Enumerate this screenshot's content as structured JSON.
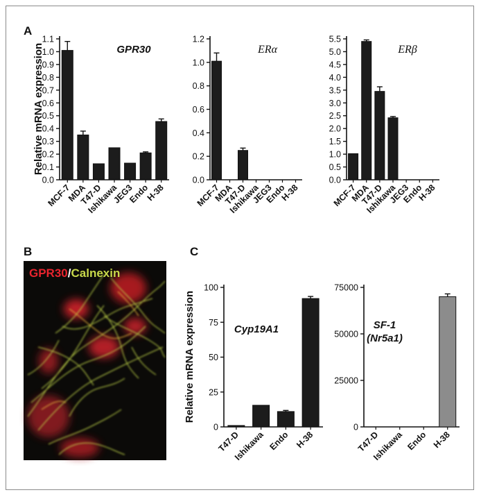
{
  "panels": {
    "a": "A",
    "b": "B",
    "c": "C"
  },
  "micrograph": {
    "label_red": "GPR30",
    "label_sep": "/",
    "label_green": "Calnexin",
    "colors": {
      "red": "#e8242e",
      "green": "#c8d84a",
      "background": "#0a0a08"
    }
  },
  "colors": {
    "bar": "#1c1c1c",
    "bar_grey": "#8c8c8c",
    "axis": "#111111"
  },
  "chart_data": [
    {
      "id": "gpr30",
      "type": "bar",
      "panel": "A",
      "title": "GPR30",
      "ylabel": "Relative mRNA expression",
      "ylim": [
        0,
        1.1
      ],
      "yticks": [
        "0.0",
        "0.1",
        "0.2",
        "0.3",
        "0.4",
        "0.5",
        "0.6",
        "0.7",
        "0.8",
        "0.9",
        "1.0",
        "1.1"
      ],
      "categories": [
        "MCF-7",
        "MDA",
        "T47-D",
        "Ishikawa",
        "JEG3",
        "Endo",
        "H-38"
      ],
      "values": [
        1.01,
        0.35,
        0.125,
        0.25,
        0.13,
        0.21,
        0.455
      ],
      "errors": [
        0.07,
        0.03,
        0.0,
        0.0,
        0.0,
        0.008,
        0.02
      ]
    },
    {
      "id": "era",
      "type": "bar",
      "panel": "A",
      "title_main": "ER",
      "title_greek": "α",
      "ylim": [
        0,
        1.2
      ],
      "yticks": [
        "0.0",
        "0.2",
        "0.4",
        "0.6",
        "0.8",
        "1.0",
        "1.2"
      ],
      "categories": [
        "MCF-7",
        "MDA",
        "T47-D",
        "Ishikawa",
        "JEG3",
        "Endo",
        "H-38"
      ],
      "values": [
        1.01,
        0.0,
        0.25,
        0.0,
        0.0,
        0.0,
        0.0
      ],
      "errors": [
        0.07,
        0.0,
        0.02,
        0.0,
        0.0,
        0.0,
        0.0
      ]
    },
    {
      "id": "erb",
      "type": "bar",
      "panel": "A",
      "title_main": "ER",
      "title_greek": "β",
      "ylim": [
        0,
        5.5
      ],
      "yticks": [
        "0.0",
        "0.5",
        "1.0",
        "1.5",
        "2.0",
        "2.5",
        "3.0",
        "3.5",
        "4.0",
        "4.5",
        "5.0",
        "5.5"
      ],
      "categories": [
        "MCF-7",
        "MDA",
        "T47-D",
        "Ishikawa",
        "JEG3",
        "Endo",
        "H-38"
      ],
      "values": [
        1.02,
        5.4,
        3.45,
        2.42,
        0.0,
        0.0,
        0.0
      ],
      "errors": [
        0.0,
        0.06,
        0.18,
        0.05,
        0.0,
        0.0,
        0.0
      ]
    },
    {
      "id": "cyp",
      "type": "bar",
      "panel": "C",
      "title": "Cyp19A1",
      "ylabel": "Relative mRNA expression",
      "ylim": [
        0,
        100
      ],
      "yticks": [
        "0",
        "25",
        "50",
        "75",
        "100"
      ],
      "categories": [
        "T47-D",
        "Ishikawa",
        "Endo",
        "H-38"
      ],
      "values": [
        1.0,
        15.5,
        11.0,
        92.0
      ],
      "errors": [
        0.0,
        0.0,
        0.8,
        1.5
      ]
    },
    {
      "id": "sf1",
      "type": "bar",
      "panel": "C",
      "title_line1": "SF-1",
      "title_line2": "(Nr5a1)",
      "ylim": [
        0,
        75000
      ],
      "yticks": [
        "0",
        "25000",
        "50000",
        "75000"
      ],
      "categories": [
        "T47-D",
        "Ishikawa",
        "Endo",
        "H-38"
      ],
      "values": [
        0,
        0,
        0,
        70000
      ],
      "errors": [
        0,
        0,
        0,
        1500
      ],
      "bar_color": "grey"
    }
  ]
}
